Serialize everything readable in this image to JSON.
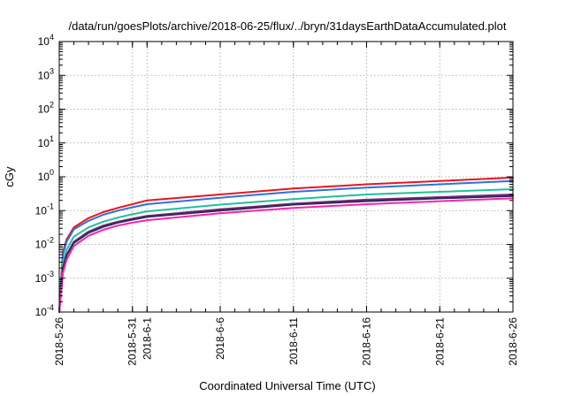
{
  "chart_data": {
    "type": "line",
    "title": "/data/run/goesPlots/archive/2018-06-25/flux/../bryn/31daysEarthDataAccumulated.plot",
    "xlabel": "Coordinated Universal Time (UTC)",
    "ylabel": "cGy",
    "x_ticks": [
      "2018-5-26",
      "2018-5-31",
      "2018-6-1",
      "2018-6-6",
      "2018-6-11",
      "2018-6-16",
      "2018-6-21",
      "2018-6-26"
    ],
    "xlim": [
      "2018-5-26",
      "2018-6-26"
    ],
    "yscale": "log",
    "ylim": [
      0.0001,
      10000
    ],
    "y_ticks": [
      {
        "base": "10",
        "exp": "-4",
        "value": 0.0001
      },
      {
        "base": "10",
        "exp": "-3",
        "value": 0.001
      },
      {
        "base": "10",
        "exp": "-2",
        "value": 0.01
      },
      {
        "base": "10",
        "exp": "-1",
        "value": 0.1
      },
      {
        "base": "10",
        "exp": "0",
        "value": 1
      },
      {
        "base": "10",
        "exp": "1",
        "value": 10
      },
      {
        "base": "10",
        "exp": "2",
        "value": 100
      },
      {
        "base": "10",
        "exp": "3",
        "value": 1000
      },
      {
        "base": "10",
        "exp": "4",
        "value": 10000
      }
    ],
    "grid": true,
    "x": [
      "2018-5-26",
      "2018-5-26 06:00",
      "2018-5-26 12:00",
      "2018-5-27",
      "2018-5-28",
      "2018-5-29",
      "2018-5-30",
      "2018-5-31",
      "2018-6-1",
      "2018-6-6",
      "2018-6-11",
      "2018-6-16",
      "2018-6-21",
      "2018-6-26"
    ],
    "series": [
      {
        "color": "#e8151b",
        "values": [
          0.0001,
          0.006,
          0.014,
          0.032,
          0.06,
          0.09,
          0.12,
          0.155,
          0.2,
          0.3,
          0.45,
          0.6,
          0.75,
          0.95
        ]
      },
      {
        "color": "#2f6fe0",
        "values": [
          0.0001,
          0.005,
          0.012,
          0.028,
          0.05,
          0.075,
          0.1,
          0.125,
          0.155,
          0.24,
          0.36,
          0.48,
          0.6,
          0.75
        ]
      },
      {
        "color": "#1fc09a",
        "values": [
          0.0001,
          0.003,
          0.007,
          0.017,
          0.032,
          0.047,
          0.062,
          0.078,
          0.095,
          0.15,
          0.22,
          0.3,
          0.36,
          0.43
        ]
      },
      {
        "color": "#7a2a7a",
        "values": [
          0.0001,
          0.002,
          0.005,
          0.012,
          0.024,
          0.036,
          0.047,
          0.058,
          0.07,
          0.11,
          0.16,
          0.21,
          0.25,
          0.3
        ]
      },
      {
        "color": "#2b2b5a",
        "values": [
          0.0001,
          0.0019,
          0.0047,
          0.011,
          0.022,
          0.033,
          0.044,
          0.054,
          0.065,
          0.1,
          0.15,
          0.19,
          0.23,
          0.27
        ]
      },
      {
        "color": "#ff22aa",
        "values": [
          0.0001,
          0.0014,
          0.0035,
          0.009,
          0.018,
          0.027,
          0.036,
          0.044,
          0.052,
          0.083,
          0.12,
          0.155,
          0.19,
          0.23
        ]
      }
    ]
  }
}
